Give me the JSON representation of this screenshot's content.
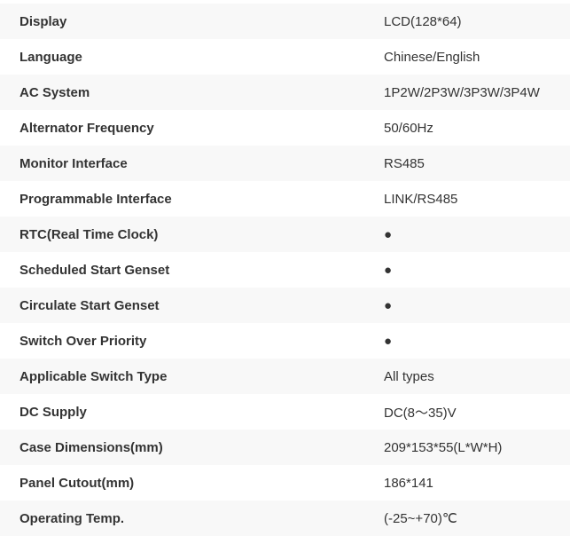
{
  "specs": [
    {
      "label": "Display",
      "value": "LCD(128*64)"
    },
    {
      "label": "Language",
      "value": "Chinese/English"
    },
    {
      "label": "AC System",
      "value": "1P2W/2P3W/3P3W/3P4W"
    },
    {
      "label": "Alternator Frequency",
      "value": "50/60Hz"
    },
    {
      "label": "Monitor Interface",
      "value": "RS485"
    },
    {
      "label": "Programmable Interface",
      "value": "LINK/RS485"
    },
    {
      "label": "RTC(Real Time Clock)",
      "value": "●"
    },
    {
      "label": "Scheduled Start Genset",
      "value": "●"
    },
    {
      "label": "Circulate Start Genset",
      "value": "●"
    },
    {
      "label": "Switch Over Priority",
      "value": "●"
    },
    {
      "label": "Applicable Switch Type",
      "value": "All types"
    },
    {
      "label": "DC Supply",
      "value": "DC(8～35)V"
    },
    {
      "label": "Case Dimensions(mm)",
      "value": "209*153*55(L*W*H)"
    },
    {
      "label": "Panel Cutout(mm)",
      "value": "186*141"
    },
    {
      "label": "Operating Temp.",
      "value": "(-25~+70)℃"
    }
  ]
}
